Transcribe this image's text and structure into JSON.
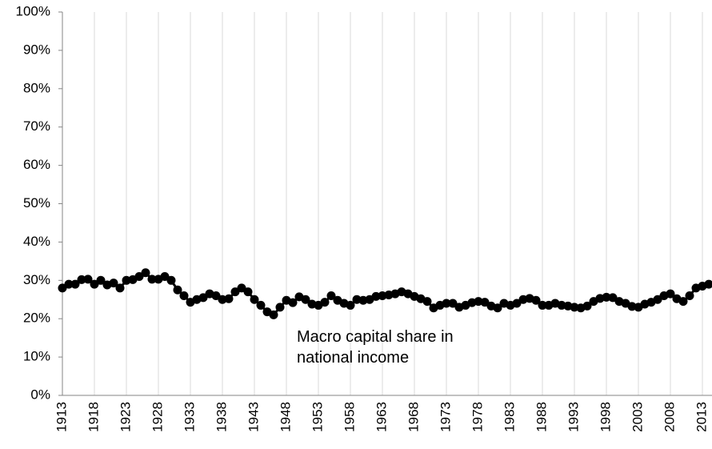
{
  "chart_data": {
    "type": "line",
    "marker": "circle",
    "color": "#000000",
    "grid": true,
    "annotation": "Macro capital share in national income",
    "x": [
      1913,
      1914,
      1915,
      1916,
      1917,
      1918,
      1919,
      1920,
      1921,
      1922,
      1923,
      1924,
      1925,
      1926,
      1927,
      1928,
      1929,
      1930,
      1931,
      1932,
      1933,
      1934,
      1935,
      1936,
      1937,
      1938,
      1939,
      1940,
      1941,
      1942,
      1943,
      1944,
      1945,
      1946,
      1947,
      1948,
      1949,
      1950,
      1951,
      1952,
      1953,
      1954,
      1955,
      1956,
      1957,
      1958,
      1959,
      1960,
      1961,
      1962,
      1963,
      1964,
      1965,
      1966,
      1967,
      1968,
      1969,
      1970,
      1971,
      1972,
      1973,
      1974,
      1975,
      1976,
      1977,
      1978,
      1979,
      1980,
      1981,
      1982,
      1983,
      1984,
      1985,
      1986,
      1987,
      1988,
      1989,
      1990,
      1991,
      1992,
      1993,
      1994,
      1995,
      1996,
      1997,
      1998,
      1999,
      2000,
      2001,
      2002,
      2003,
      2004,
      2005,
      2006,
      2007,
      2008,
      2009,
      2010,
      2011,
      2012,
      2013,
      2014
    ],
    "values": [
      28,
      29,
      29,
      30.2,
      30.3,
      29,
      30,
      28.8,
      29.3,
      28,
      30,
      30.2,
      31,
      32,
      30.3,
      30.3,
      31,
      30,
      27.5,
      26,
      24.3,
      25,
      25.5,
      26.5,
      26,
      25,
      25.2,
      27,
      28,
      27,
      25,
      23.5,
      21.8,
      21,
      23,
      24.8,
      24.2,
      25.7,
      25,
      23.8,
      23.5,
      24.3,
      26,
      24.8,
      24,
      23.5,
      25,
      24.8,
      25,
      25.8,
      26,
      26.2,
      26.5,
      27,
      26.5,
      25.8,
      25.2,
      24.5,
      22.8,
      23.5,
      24,
      24,
      23,
      23.5,
      24.2,
      24.5,
      24.3,
      23.3,
      22.8,
      24,
      23.5,
      24,
      25,
      25.3,
      24.8,
      23.5,
      23.5,
      24,
      23.5,
      23.3,
      23,
      22.8,
      23.3,
      24.5,
      25.3,
      25.6,
      25.5,
      24.5,
      24,
      23.2,
      23,
      23.8,
      24.3,
      25,
      26,
      26.5,
      25.2,
      24.5,
      26,
      28,
      28.5,
      29
    ],
    "xlim": [
      1913,
      2014.5
    ],
    "xticks": [
      1913,
      1918,
      1923,
      1928,
      1933,
      1938,
      1943,
      1948,
      1953,
      1958,
      1963,
      1968,
      1973,
      1978,
      1983,
      1988,
      1993,
      1998,
      2003,
      2008,
      2013
    ],
    "ylim": [
      0,
      100
    ],
    "yticks": [
      {
        "value": 0,
        "label": "0%"
      },
      {
        "value": 10,
        "label": "10%"
      },
      {
        "value": 20,
        "label": "20%"
      },
      {
        "value": 30,
        "label": "30%"
      },
      {
        "value": 40,
        "label": "40%"
      },
      {
        "value": 50,
        "label": "50%"
      },
      {
        "value": 60,
        "label": "60%"
      },
      {
        "value": 70,
        "label": "70%"
      },
      {
        "value": 80,
        "label": "80%"
      },
      {
        "value": 90,
        "label": "90%"
      },
      {
        "value": 100,
        "label": "100%"
      }
    ]
  }
}
